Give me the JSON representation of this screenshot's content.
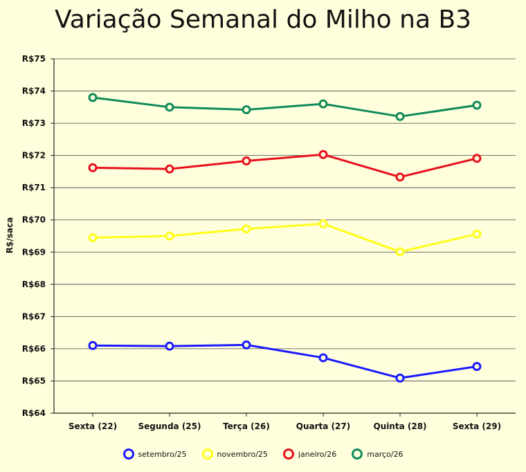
{
  "chart_data": {
    "type": "line",
    "title": "Variação Semanal do Milho na B3",
    "xlabel": "",
    "ylabel": "R$/saca",
    "categories": [
      "Sexta (22)",
      "Segunda (25)",
      "Terça (26)",
      "Quarta (27)",
      "Quinta (28)",
      "Sexta (29)"
    ],
    "ylim": [
      64,
      75
    ],
    "yticks": [
      "R$64",
      "R$65",
      "R$66",
      "R$67",
      "R$68",
      "R$69",
      "R$70",
      "R$71",
      "R$72",
      "R$73",
      "R$74",
      "R$75"
    ],
    "grid": true,
    "legend_position": "bottom",
    "series": [
      {
        "name": "setembro/25",
        "color": "#1a1aff",
        "values": [
          66.1,
          66.08,
          66.12,
          65.72,
          65.09,
          65.45
        ]
      },
      {
        "name": "novembro/25",
        "color": "#ffff1a",
        "values": [
          69.45,
          69.5,
          69.72,
          69.88,
          69.01,
          69.56
        ]
      },
      {
        "name": "janeiro/26",
        "color": "#e8101c",
        "values": [
          71.62,
          71.58,
          71.83,
          72.03,
          71.33,
          71.91
        ]
      },
      {
        "name": "março/26",
        "color": "#0f8a5a",
        "values": [
          73.8,
          73.5,
          73.42,
          73.6,
          73.21,
          73.56
        ]
      }
    ]
  }
}
